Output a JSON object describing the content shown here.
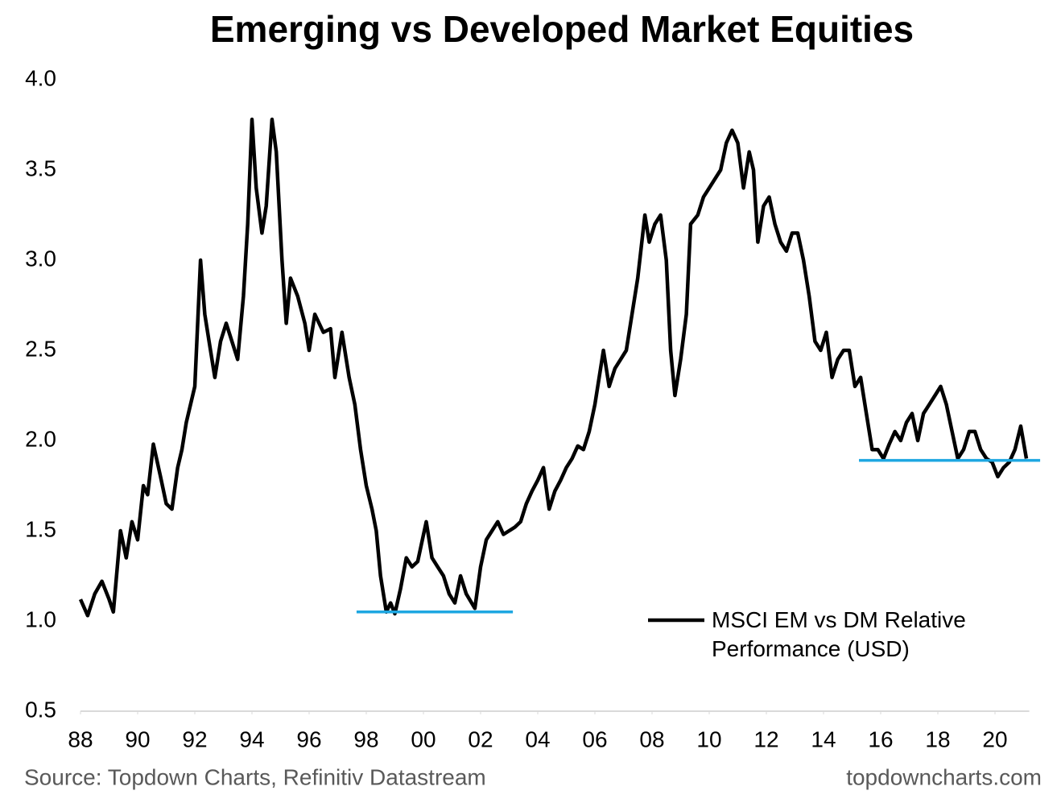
{
  "chart_data": {
    "type": "line",
    "title": "Emerging vs Developed Market Equities",
    "source": "Source: Topdown Charts, Refinitiv Datastream",
    "website": "topdowncharts.com",
    "xlim": [
      1988,
      2021.2
    ],
    "xticks": [
      {
        "value": 1988,
        "label": "88"
      },
      {
        "value": 1990,
        "label": "90"
      },
      {
        "value": 1992,
        "label": "92"
      },
      {
        "value": 1994,
        "label": "94"
      },
      {
        "value": 1996,
        "label": "96"
      },
      {
        "value": 1998,
        "label": "98"
      },
      {
        "value": 2000,
        "label": "00"
      },
      {
        "value": 2002,
        "label": "02"
      },
      {
        "value": 2004,
        "label": "04"
      },
      {
        "value": 2006,
        "label": "06"
      },
      {
        "value": 2008,
        "label": "08"
      },
      {
        "value": 2010,
        "label": "10"
      },
      {
        "value": 2012,
        "label": "12"
      },
      {
        "value": 2014,
        "label": "14"
      },
      {
        "value": 2016,
        "label": "16"
      },
      {
        "value": 2018,
        "label": "18"
      },
      {
        "value": 2020,
        "label": "20"
      }
    ],
    "ylim": [
      0.5,
      4.0
    ],
    "yticks": [
      0.5,
      {
        "value": 1,
        "label": "1.0"
      },
      1.5,
      {
        "value": 2,
        "label": "2.0"
      },
      2.5,
      {
        "value": 3,
        "label": "3.0"
      },
      3.5,
      {
        "value": 4,
        "label": "4.0"
      }
    ],
    "grid": false,
    "legend": "bottom-right",
    "x": [
      1988.0,
      1988.25,
      1988.5,
      1988.75,
      1989.0,
      1989.15,
      1989.4,
      1989.6,
      1989.8,
      1990.0,
      1990.2,
      1990.35,
      1990.55,
      1990.8,
      1991.0,
      1991.2,
      1991.4,
      1991.55,
      1991.7,
      1992.0,
      1992.2,
      1992.35,
      1992.5,
      1992.7,
      1992.9,
      1993.1,
      1993.3,
      1993.5,
      1993.7,
      1993.85,
      1994.0,
      1994.15,
      1994.35,
      1994.5,
      1994.7,
      1994.85,
      1995.05,
      1995.2,
      1995.35,
      1995.6,
      1995.85,
      1996.0,
      1996.2,
      1996.5,
      1996.75,
      1996.9,
      1997.15,
      1997.4,
      1997.6,
      1997.8,
      1998.0,
      1998.2,
      1998.35,
      1998.5,
      1998.7,
      1998.85,
      1999.0,
      1999.2,
      1999.4,
      1999.6,
      1999.8,
      2000.1,
      2000.3,
      2000.5,
      2000.7,
      2000.9,
      2001.1,
      2001.3,
      2001.5,
      2001.8,
      2002.0,
      2002.2,
      2002.4,
      2002.6,
      2002.8,
      2003.0,
      2003.2,
      2003.4,
      2003.6,
      2003.8,
      2004.0,
      2004.2,
      2004.4,
      2004.6,
      2004.8,
      2005.0,
      2005.2,
      2005.4,
      2005.6,
      2005.8,
      2006.0,
      2006.3,
      2006.5,
      2006.7,
      2006.9,
      2007.1,
      2007.3,
      2007.5,
      2007.75,
      2007.9,
      2008.1,
      2008.3,
      2008.5,
      2008.65,
      2008.8,
      2009.0,
      2009.2,
      2009.35,
      2009.6,
      2009.8,
      2010.0,
      2010.2,
      2010.4,
      2010.6,
      2010.8,
      2011.0,
      2011.2,
      2011.4,
      2011.55,
      2011.7,
      2011.9,
      2012.1,
      2012.3,
      2012.5,
      2012.7,
      2012.9,
      2013.1,
      2013.3,
      2013.5,
      2013.7,
      2013.9,
      2014.1,
      2014.3,
      2014.5,
      2014.7,
      2014.9,
      2015.1,
      2015.3,
      2015.5,
      2015.7,
      2015.9,
      2016.1,
      2016.3,
      2016.5,
      2016.7,
      2016.9,
      2017.1,
      2017.3,
      2017.5,
      2017.7,
      2017.9,
      2018.1,
      2018.3,
      2018.5,
      2018.7,
      2018.9,
      2019.1,
      2019.3,
      2019.5,
      2019.7,
      2019.9,
      2020.1,
      2020.3,
      2020.5,
      2020.7,
      2020.9,
      2021.1
    ],
    "series": [
      {
        "name": "MSCI EM vs DM Relative Performance (USD)",
        "color": "#000000",
        "values": [
          1.12,
          1.03,
          1.15,
          1.22,
          1.12,
          1.05,
          1.5,
          1.35,
          1.55,
          1.45,
          1.75,
          1.7,
          1.98,
          1.8,
          1.65,
          1.62,
          1.85,
          1.95,
          2.1,
          2.3,
          3.0,
          2.7,
          2.55,
          2.35,
          2.55,
          2.65,
          2.55,
          2.45,
          2.8,
          3.2,
          3.78,
          3.4,
          3.15,
          3.3,
          3.78,
          3.6,
          3.0,
          2.65,
          2.9,
          2.8,
          2.65,
          2.5,
          2.7,
          2.6,
          2.62,
          2.35,
          2.6,
          2.35,
          2.2,
          1.95,
          1.75,
          1.62,
          1.5,
          1.25,
          1.05,
          1.1,
          1.04,
          1.18,
          1.35,
          1.3,
          1.33,
          1.55,
          1.35,
          1.3,
          1.25,
          1.15,
          1.1,
          1.25,
          1.15,
          1.07,
          1.3,
          1.45,
          1.5,
          1.55,
          1.48,
          1.5,
          1.52,
          1.55,
          1.65,
          1.72,
          1.78,
          1.85,
          1.62,
          1.72,
          1.78,
          1.85,
          1.9,
          1.97,
          1.95,
          2.05,
          2.2,
          2.5,
          2.3,
          2.4,
          2.45,
          2.5,
          2.7,
          2.9,
          3.25,
          3.1,
          3.2,
          3.25,
          3.0,
          2.5,
          2.25,
          2.45,
          2.7,
          3.2,
          3.25,
          3.35,
          3.4,
          3.45,
          3.5,
          3.65,
          3.72,
          3.65,
          3.4,
          3.6,
          3.5,
          3.1,
          3.3,
          3.35,
          3.2,
          3.1,
          3.05,
          3.15,
          3.15,
          3.0,
          2.8,
          2.55,
          2.5,
          2.6,
          2.35,
          2.45,
          2.5,
          2.5,
          2.3,
          2.35,
          2.15,
          1.95,
          1.95,
          1.9,
          1.98,
          2.05,
          2.0,
          2.1,
          2.15,
          2.0,
          2.15,
          2.2,
          2.25,
          2.3,
          2.2,
          2.05,
          1.9,
          1.95,
          2.05,
          2.05,
          1.95,
          1.9,
          1.88,
          1.8,
          1.85,
          1.88,
          1.95,
          2.08,
          1.9
        ]
      }
    ],
    "reference_lines": [
      {
        "x": [
          1997.66,
          2003.13
        ],
        "y": 1.05,
        "color": "#1ea7e1"
      },
      {
        "x": [
          2015.24,
          2021.58
        ],
        "y": 1.89,
        "color": "#1ea7e1"
      }
    ]
  }
}
